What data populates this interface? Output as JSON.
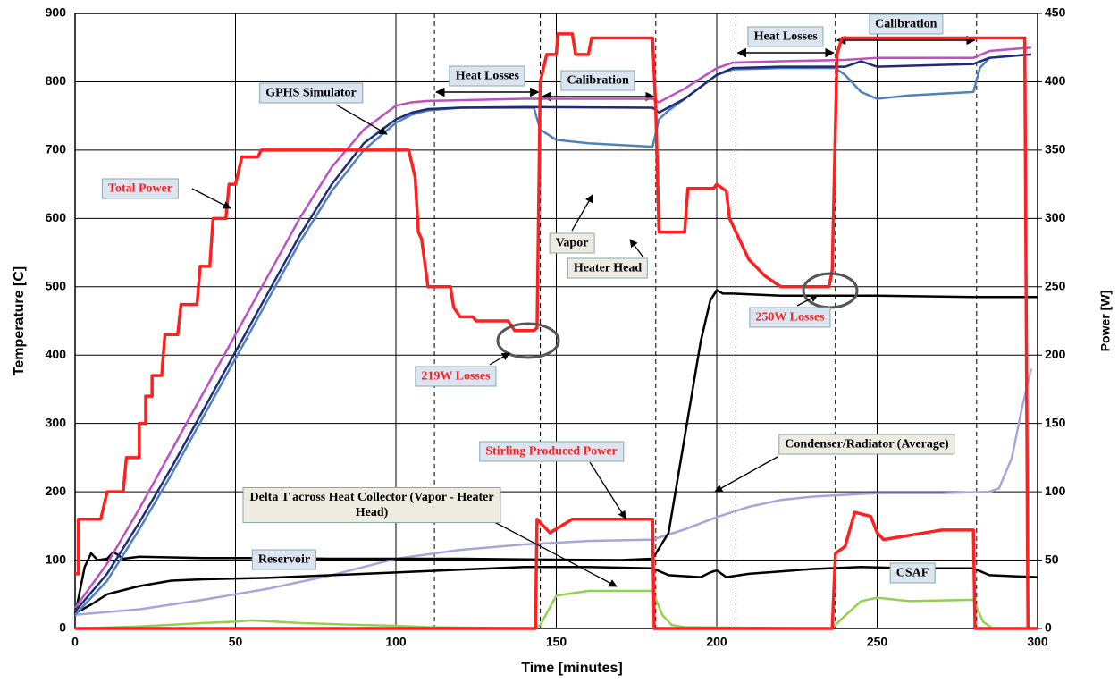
{
  "chart_data": {
    "type": "line",
    "xlabel": "Time [minutes]",
    "ylabel": "Temperature [C]",
    "y2label": "Power [W]",
    "xlim": [
      0,
      300
    ],
    "xticks": [
      0,
      50,
      100,
      150,
      200,
      250,
      300
    ],
    "ylim": [
      0,
      900
    ],
    "yticks": [
      0,
      100,
      200,
      300,
      400,
      500,
      600,
      700,
      800,
      900
    ],
    "y2lim": [
      0,
      450
    ],
    "y2ticks": [
      0,
      50,
      100,
      150,
      200,
      250,
      300,
      350,
      400,
      450
    ],
    "grid": true,
    "series": [
      {
        "name": "GPHS Simulator",
        "color": "#c04fc0",
        "x": [
          0,
          10,
          20,
          30,
          40,
          50,
          60,
          70,
          80,
          90,
          100,
          105,
          110,
          120,
          140,
          180,
          182,
          190,
          200,
          205,
          220,
          240,
          250,
          280,
          285,
          298
        ],
        "values": [
          30,
          95,
          175,
          260,
          345,
          430,
          515,
          600,
          675,
          730,
          765,
          770,
          772,
          773,
          775,
          775,
          770,
          790,
          820,
          828,
          830,
          832,
          835,
          835,
          845,
          850
        ]
      },
      {
        "name": "Vapor",
        "color": "#1f2a7a",
        "x": [
          0,
          10,
          20,
          30,
          40,
          50,
          60,
          70,
          80,
          90,
          100,
          105,
          110,
          120,
          140,
          180,
          182,
          190,
          200,
          205,
          220,
          240,
          245,
          250,
          280,
          285,
          298
        ],
        "values": [
          25,
          80,
          155,
          235,
          320,
          405,
          490,
          575,
          650,
          710,
          745,
          755,
          760,
          762,
          763,
          762,
          755,
          775,
          810,
          820,
          822,
          822,
          830,
          822,
          826,
          835,
          840
        ]
      },
      {
        "name": "Heater Head",
        "color": "#4f81bd",
        "x": [
          0,
          10,
          20,
          30,
          40,
          50,
          60,
          70,
          80,
          90,
          100,
          105,
          110,
          120,
          143,
          145,
          150,
          160,
          180,
          182,
          185,
          190,
          200,
          205,
          220,
          237,
          240,
          245,
          250,
          260,
          280,
          282,
          285,
          298
        ],
        "values": [
          20,
          70,
          145,
          225,
          310,
          395,
          480,
          565,
          640,
          700,
          740,
          752,
          758,
          762,
          762,
          730,
          715,
          710,
          705,
          745,
          758,
          775,
          810,
          818,
          820,
          820,
          810,
          785,
          775,
          780,
          785,
          820,
          835,
          840
        ]
      },
      {
        "name": "Total Power",
        "color": "#ff2020",
        "axis": "y2",
        "x": [
          0,
          1,
          1,
          8,
          10,
          15,
          16,
          20,
          20,
          22,
          22,
          24,
          24,
          27,
          28,
          32,
          33,
          38,
          39,
          42,
          43,
          47,
          48,
          50,
          52,
          57,
          58,
          104,
          106,
          107,
          108,
          110,
          117,
          118,
          120,
          124,
          125,
          135,
          137,
          143,
          144,
          145,
          147,
          150,
          150.5,
          155,
          156,
          160,
          161,
          180,
          181,
          182,
          190,
          191,
          199,
          200,
          203,
          204,
          210,
          215,
          220,
          235,
          236,
          237.5,
          239,
          296,
          297
        ],
        "values": [
          40,
          40,
          80,
          80,
          100,
          100,
          125,
          125,
          150,
          150,
          170,
          170,
          185,
          185,
          215,
          215,
          237,
          237,
          265,
          265,
          300,
          300,
          325,
          325,
          345,
          345,
          350,
          350,
          330,
          290,
          285,
          250,
          250,
          235,
          228,
          228,
          225,
          225,
          218,
          218,
          220,
          400,
          420,
          420,
          435,
          435,
          420,
          420,
          432,
          432,
          380,
          290,
          290,
          322,
          322,
          325,
          320,
          300,
          270,
          258,
          250,
          250,
          262,
          420,
          432,
          432,
          0
        ]
      },
      {
        "name": "Stirling Produced Power",
        "color": "#ff2020",
        "axis": "y2",
        "x": [
          0,
          143.5,
          144,
          146,
          148,
          155,
          180,
          180.5,
          236,
          237,
          240,
          243,
          248,
          250,
          252,
          270,
          280,
          280.5,
          300
        ],
        "values": [
          0,
          0,
          80,
          75,
          70,
          80,
          80,
          0,
          0,
          55,
          60,
          85,
          82,
          70,
          65,
          72,
          72,
          0,
          0
        ]
      },
      {
        "name": "Reservoir",
        "color": "#000000",
        "x": [
          0,
          3,
          5,
          7,
          10,
          12,
          15,
          20,
          40,
          60,
          80,
          100,
          120,
          140,
          170,
          180,
          185,
          190,
          195,
          198,
          200,
          202,
          205,
          220,
          250,
          280,
          300
        ],
        "values": [
          20,
          90,
          110,
          100,
          102,
          112,
          102,
          105,
          103,
          103,
          102,
          102,
          102,
          101,
          100,
          102,
          140,
          280,
          420,
          480,
          495,
          490,
          490,
          487,
          487,
          485,
          485
        ]
      },
      {
        "name": "Condenser/Radiator (Average)",
        "color": "#a6a6dd",
        "x": [
          0,
          20,
          40,
          60,
          80,
          100,
          120,
          140,
          160,
          180,
          190,
          200,
          210,
          220,
          230,
          250,
          270,
          285,
          288,
          292,
          295,
          298
        ],
        "values": [
          20,
          28,
          42,
          58,
          78,
          102,
          115,
          123,
          128,
          130,
          145,
          163,
          178,
          188,
          193,
          198,
          198,
          200,
          205,
          250,
          320,
          380
        ]
      },
      {
        "name": "CSAF",
        "color": "#000000",
        "x": [
          0,
          5,
          10,
          20,
          30,
          40,
          60,
          80,
          100,
          120,
          140,
          160,
          180,
          185,
          195,
          198,
          200,
          203,
          210,
          230,
          245,
          260,
          280,
          285,
          300
        ],
        "values": [
          22,
          35,
          50,
          62,
          70,
          72,
          74,
          78,
          82,
          86,
          90,
          90,
          88,
          78,
          75,
          82,
          85,
          75,
          80,
          87,
          90,
          88,
          88,
          78,
          75
        ]
      },
      {
        "name": "Delta T across Heat Collector (Vapor - Heater Head)",
        "color": "#92d050",
        "x": [
          0,
          20,
          40,
          50,
          55,
          70,
          90,
          100,
          110,
          143,
          145,
          150,
          160,
          180,
          183,
          186,
          190,
          236,
          238,
          245,
          250,
          260,
          280,
          283,
          286,
          300
        ],
        "values": [
          0,
          3,
          8,
          10,
          12,
          8,
          5,
          4,
          2,
          0,
          5,
          48,
          55,
          55,
          20,
          5,
          2,
          0,
          10,
          40,
          45,
          40,
          42,
          10,
          0,
          0
        ]
      }
    ],
    "annotations": [
      "219W Losses",
      "250W Losses"
    ],
    "phases": [
      {
        "label": "Heat Losses",
        "start": 112,
        "end": 145
      },
      {
        "label": "Calibration",
        "start": 145,
        "end": 181
      },
      {
        "label": "Heat Losses",
        "start": 206,
        "end": 237
      },
      {
        "label": "Calibration",
        "start": 237,
        "end": 281
      }
    ]
  }
}
